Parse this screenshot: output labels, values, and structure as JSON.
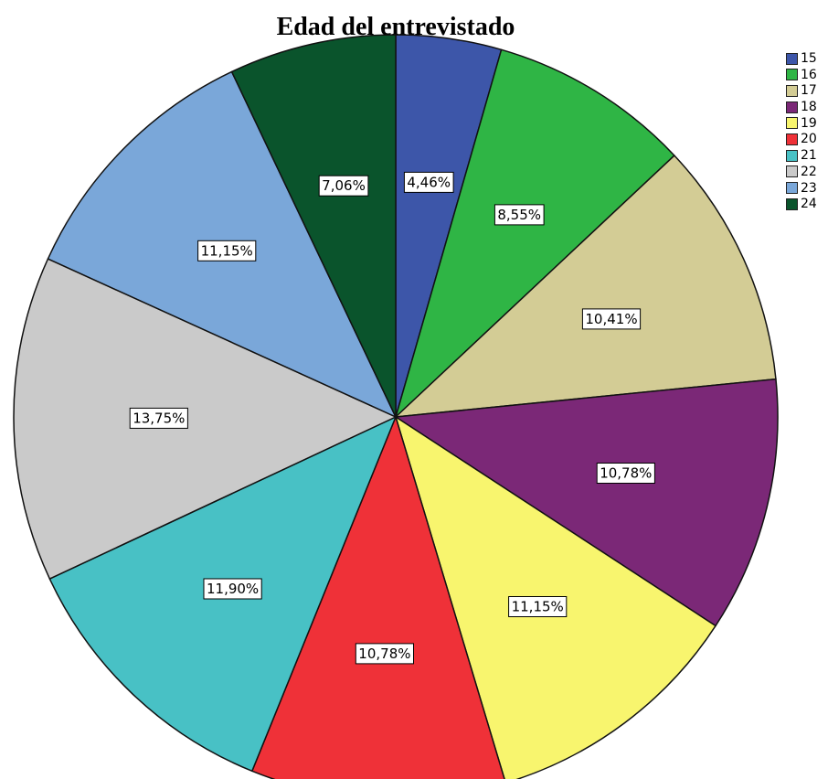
{
  "chart_data": {
    "type": "pie",
    "title": "Edad del entrevistado",
    "legend_position": "top-right",
    "start_angle_deg": 0,
    "direction": "clockwise",
    "slices": [
      {
        "name": "15",
        "value": 4.46,
        "label": "4,46%",
        "color": "#3d56a9"
      },
      {
        "name": "16",
        "value": 8.55,
        "label": "8,55%",
        "color": "#2fb545"
      },
      {
        "name": "17",
        "value": 10.41,
        "label": "10,41%",
        "color": "#d3cc95"
      },
      {
        "name": "18",
        "value": 10.78,
        "label": "10,78%",
        "color": "#7b2877"
      },
      {
        "name": "19",
        "value": 11.15,
        "label": "11,15%",
        "color": "#f8f56e"
      },
      {
        "name": "20",
        "value": 10.78,
        "label": "10,78%",
        "color": "#ef3138"
      },
      {
        "name": "21",
        "value": 11.9,
        "label": "11,90%",
        "color": "#48c1c5"
      },
      {
        "name": "22",
        "value": 13.75,
        "label": "13,75%",
        "color": "#cacaca"
      },
      {
        "name": "23",
        "value": 11.15,
        "label": "11,15%",
        "color": "#7aa7d9"
      },
      {
        "name": "24",
        "value": 7.06,
        "label": "7,06%",
        "color": "#0a542c"
      }
    ]
  }
}
